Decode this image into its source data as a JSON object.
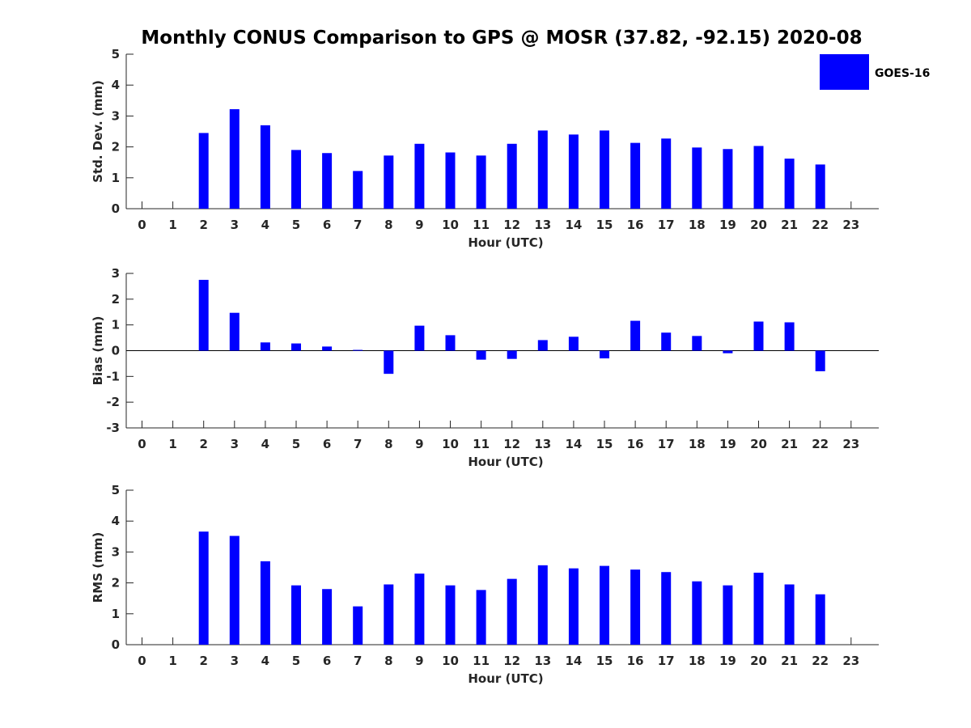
{
  "title": "Monthly CONUS Comparison to GPS @ MOSR (37.82, -92.15) 2020-08",
  "legend": {
    "label": "GOES-16"
  },
  "colors": {
    "bar": "#0000ff",
    "axis": "#262626"
  },
  "chart_data": [
    {
      "type": "bar",
      "title": "Monthly CONUS Comparison to GPS @ MOSR (37.82, -92.15) 2020-08",
      "xlabel": "Hour (UTC)",
      "ylabel": "Std. Dev. (mm)",
      "categories": [
        "0",
        "1",
        "2",
        "3",
        "4",
        "5",
        "6",
        "7",
        "8",
        "9",
        "10",
        "11",
        "12",
        "13",
        "14",
        "15",
        "16",
        "17",
        "18",
        "19",
        "20",
        "21",
        "22",
        "23"
      ],
      "series": [
        {
          "name": "GOES-16",
          "values": [
            null,
            null,
            2.45,
            3.22,
            2.7,
            1.9,
            1.8,
            1.22,
            1.72,
            2.1,
            1.82,
            1.72,
            2.1,
            2.53,
            2.4,
            2.53,
            2.13,
            2.27,
            1.98,
            1.93,
            2.03,
            1.62,
            1.43,
            null
          ]
        }
      ],
      "yticks": [
        0,
        1,
        2,
        3,
        4,
        5
      ],
      "ylim": [
        0,
        5
      ],
      "legend": "top-right"
    },
    {
      "type": "bar",
      "xlabel": "Hour (UTC)",
      "ylabel": "Bias (mm)",
      "categories": [
        "0",
        "1",
        "2",
        "3",
        "4",
        "5",
        "6",
        "7",
        "8",
        "9",
        "10",
        "11",
        "12",
        "13",
        "14",
        "15",
        "16",
        "17",
        "18",
        "19",
        "20",
        "21",
        "22",
        "23"
      ],
      "series": [
        {
          "name": "GOES-16",
          "values": [
            null,
            null,
            2.75,
            1.47,
            0.32,
            0.28,
            0.16,
            0.03,
            -0.9,
            0.97,
            0.6,
            -0.35,
            -0.32,
            0.41,
            0.54,
            -0.3,
            1.16,
            0.7,
            0.57,
            -0.1,
            1.13,
            1.1,
            -0.8,
            null
          ]
        }
      ],
      "yticks": [
        -3,
        -2,
        -1,
        0,
        1,
        2,
        3
      ],
      "ylim": [
        -3,
        3
      ],
      "zero_line": true
    },
    {
      "type": "bar",
      "xlabel": "Hour (UTC)",
      "ylabel": "RMS (mm)",
      "categories": [
        "0",
        "1",
        "2",
        "3",
        "4",
        "5",
        "6",
        "7",
        "8",
        "9",
        "10",
        "11",
        "12",
        "13",
        "14",
        "15",
        "16",
        "17",
        "18",
        "19",
        "20",
        "21",
        "22",
        "23"
      ],
      "series": [
        {
          "name": "GOES-16",
          "values": [
            null,
            null,
            3.66,
            3.52,
            2.7,
            1.92,
            1.8,
            1.24,
            1.95,
            2.3,
            1.92,
            1.77,
            2.13,
            2.57,
            2.47,
            2.55,
            2.43,
            2.35,
            2.05,
            1.92,
            2.33,
            1.95,
            1.63,
            null
          ]
        }
      ],
      "yticks": [
        0,
        1,
        2,
        3,
        4,
        5
      ],
      "ylim": [
        0,
        5
      ]
    }
  ]
}
